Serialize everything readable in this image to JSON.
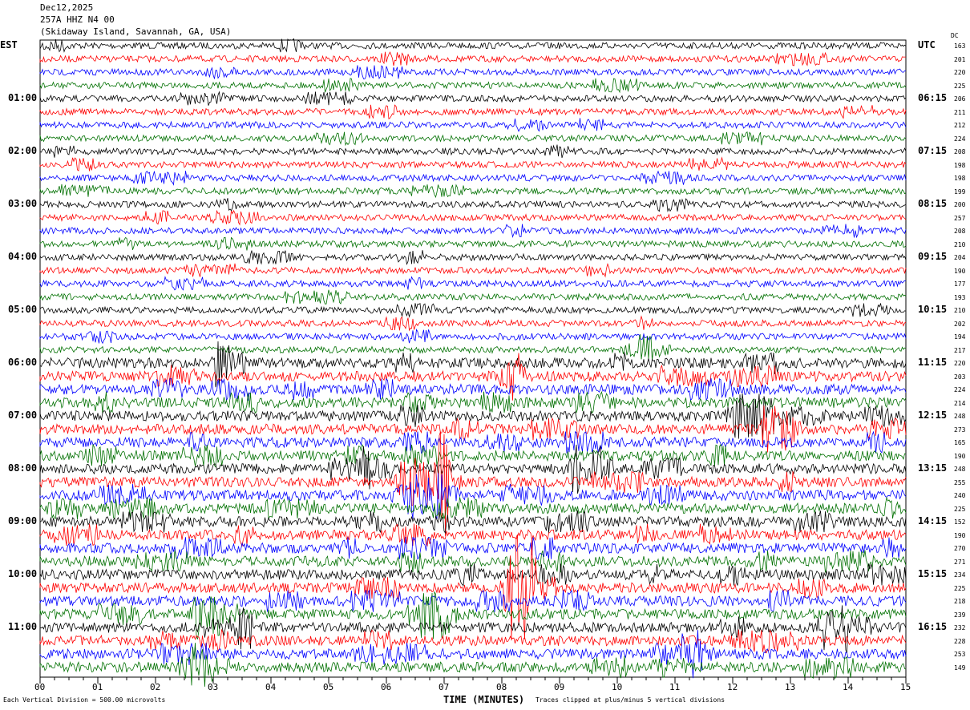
{
  "header": {
    "date": "Dec12,2025",
    "station": "257A HHZ N4 00",
    "location": "(Skidaway Island, Savannah, GA, USA)"
  },
  "left_tz": "EST",
  "right_tz": "UTC",
  "dc_label": "DC",
  "footer": {
    "scale": "Each Vertical Division =  500.00 microvolts",
    "xlabel": "TIME (MINUTES)",
    "clip": "Traces clipped at plus/minus 5 vertical divisions"
  },
  "chart_data": {
    "type": "line",
    "title": "257A HHZ N4 00",
    "xlabel": "TIME (MINUTES)",
    "xlim": [
      0,
      15
    ],
    "x_ticks": [
      "00",
      "01",
      "02",
      "03",
      "04",
      "05",
      "06",
      "07",
      "08",
      "09",
      "10",
      "11",
      "12",
      "13",
      "14",
      "15"
    ],
    "left_labels": [
      "01:00",
      "02:00",
      "03:00",
      "04:00",
      "05:00",
      "06:00",
      "07:00",
      "08:00",
      "09:00",
      "10:00",
      "11:00"
    ],
    "right_labels": [
      "06:15",
      "07:15",
      "08:15",
      "09:15",
      "10:15",
      "11:15",
      "12:15",
      "13:15",
      "14:15",
      "15:15",
      "16:15"
    ],
    "trace_colors": [
      "#000000",
      "#ff0000",
      "#0000ff",
      "#007000"
    ],
    "dc_offsets": [
      163,
      201,
      220,
      225,
      206,
      211,
      212,
      224,
      208,
      198,
      198,
      199,
      200,
      257,
      208,
      210,
      204,
      190,
      177,
      193,
      210,
      202,
      194,
      217,
      220,
      203,
      224,
      214,
      248,
      273,
      165,
      190,
      248,
      255,
      240,
      225,
      152,
      190,
      270,
      271,
      234,
      225,
      218,
      239,
      232,
      228,
      253,
      149
    ]
  }
}
